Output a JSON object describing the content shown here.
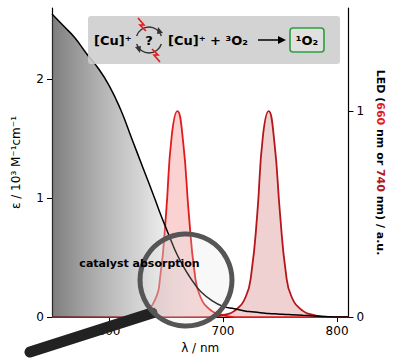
{
  "chart_data": {
    "type": "line",
    "xlabel": "λ / nm",
    "ylabel": "ε / 10³ M⁻¹cm⁻¹",
    "y2label": "LED (660 nm or 740 nm) / a.u.",
    "x": [
      550,
      560,
      570,
      580,
      590,
      600,
      610,
      620,
      630,
      640,
      645,
      650,
      655,
      660,
      665,
      670,
      675,
      680,
      690,
      700,
      710,
      720,
      725,
      730,
      735,
      740,
      745,
      750,
      755,
      760,
      770,
      780,
      790,
      800,
      810
    ],
    "xlim": [
      550,
      810
    ],
    "xticks": [
      600,
      700,
      800
    ],
    "ylim": [
      0,
      2.6
    ],
    "yticks": [
      0,
      1,
      2
    ],
    "y2lim": [
      0,
      1.5
    ],
    "y2ticks": [
      0,
      1
    ],
    "grid": false,
    "series": [
      {
        "color": "#000000",
        "values": [
          2.55,
          2.45,
          2.35,
          2.22,
          2.1,
          1.95,
          1.75,
          1.5,
          1.25,
          1.0,
          0.87,
          0.75,
          0.63,
          0.52,
          0.43,
          0.35,
          0.28,
          0.22,
          0.14,
          0.09,
          0.07,
          0.05,
          0.045,
          0.04,
          0.035,
          0.03,
          0.028,
          0.025,
          0.022,
          0.02,
          0.015,
          0.01,
          0.005,
          0,
          0
        ]
      },
      {
        "color": "#e31a1c",
        "axis": "y2",
        "values": [
          0,
          0,
          0,
          0,
          0,
          0,
          0,
          0,
          0.02,
          0.08,
          0.2,
          0.5,
          0.88,
          1.0,
          0.85,
          0.5,
          0.22,
          0.1,
          0.03,
          0.01,
          0,
          0,
          0,
          0,
          0,
          0,
          0,
          0,
          0,
          0,
          0,
          0,
          0,
          0,
          0
        ]
      },
      {
        "color": "#b5161b",
        "axis": "y2",
        "values": [
          0,
          0,
          0,
          0,
          0,
          0,
          0,
          0,
          0,
          0,
          0,
          0,
          0,
          0,
          0,
          0,
          0,
          0,
          0,
          0.01,
          0.03,
          0.1,
          0.22,
          0.5,
          0.88,
          1.0,
          0.85,
          0.5,
          0.22,
          0.1,
          0.03,
          0.01,
          0,
          0,
          0
        ]
      }
    ],
    "annotations": [
      {
        "text": "catalyst absorption",
        "x": 574,
        "y": 0.45
      }
    ],
    "scheme": [
      "[Cu]⁺",
      "?",
      "[Cu]⁺ + ³O₂",
      "¹O₂"
    ]
  }
}
